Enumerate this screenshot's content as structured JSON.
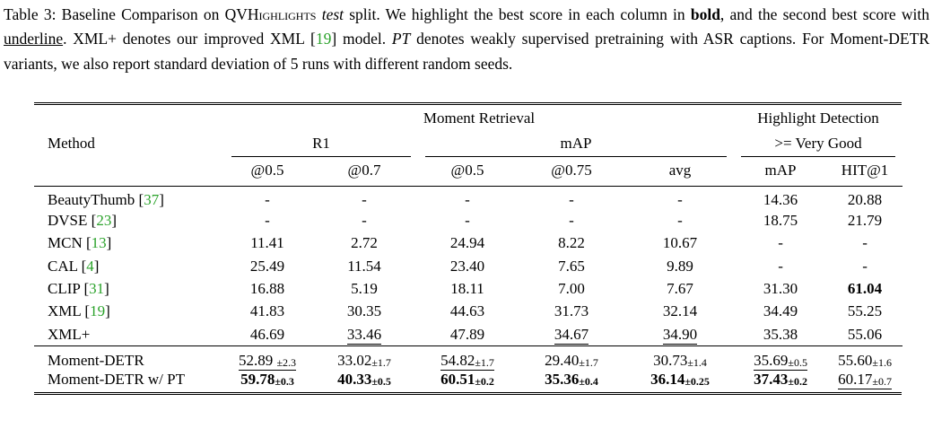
{
  "colors": {
    "citation_green": "#2aa22a",
    "text": "#000000",
    "rule": "#000000"
  },
  "caption": {
    "part1": "Table 3: Baseline Comparison on ",
    "qvhighlights": "QVHighlights",
    "space1": " ",
    "test_italic": "test",
    "part3": " split. We highlight the best score in each column in ",
    "bold_word": "bold",
    "part4": ", and the second best score with ",
    "underline_word": "underline",
    "part5": ". XML+ denotes our improved XML [",
    "cite_19": "19",
    "part6": "] model. ",
    "pt_italic": "PT",
    "part7": " denotes weakly supervised pretraining with ASR captions. For Moment-DETR variants, we also report standard deviation of 5 runs with different random seeds."
  },
  "table": {
    "header": {
      "method_label": "Method",
      "group_top": [
        "Moment Retrieval",
        "Highlight Detection"
      ],
      "group_mid": [
        "R1",
        "mAP",
        ">= Very Good"
      ],
      "columns": [
        "@0.5",
        "@0.7",
        "@0.5",
        "@0.75",
        "avg",
        "mAP",
        "HIT@1"
      ]
    },
    "rows_baselines": [
      {
        "method": "BeautyThumb",
        "cite": "37",
        "cells": [
          {
            "v": "-"
          },
          {
            "v": "-"
          },
          {
            "v": "-"
          },
          {
            "v": "-"
          },
          {
            "v": "-"
          },
          {
            "v": "14.36"
          },
          {
            "v": "20.88"
          }
        ]
      },
      {
        "method": "DVSE",
        "cite": "23",
        "cells": [
          {
            "v": "-"
          },
          {
            "v": "-"
          },
          {
            "v": "-"
          },
          {
            "v": "-"
          },
          {
            "v": "-"
          },
          {
            "v": "18.75"
          },
          {
            "v": "21.79"
          }
        ]
      },
      {
        "method": "MCN",
        "cite": "13",
        "cells": [
          {
            "v": "11.41"
          },
          {
            "v": "2.72"
          },
          {
            "v": "24.94"
          },
          {
            "v": "8.22"
          },
          {
            "v": "10.67"
          },
          {
            "v": "-"
          },
          {
            "v": "-"
          }
        ]
      },
      {
        "method": "CAL",
        "cite": "4",
        "cells": [
          {
            "v": "25.49"
          },
          {
            "v": "11.54"
          },
          {
            "v": "23.40"
          },
          {
            "v": "7.65"
          },
          {
            "v": "9.89"
          },
          {
            "v": "-"
          },
          {
            "v": "-"
          }
        ]
      },
      {
        "method": "CLIP",
        "cite": "31",
        "cells": [
          {
            "v": "16.88"
          },
          {
            "v": "5.19"
          },
          {
            "v": "18.11"
          },
          {
            "v": "7.00"
          },
          {
            "v": "7.67"
          },
          {
            "v": "31.30"
          },
          {
            "v": "61.04",
            "bold": true
          }
        ]
      },
      {
        "method": "XML",
        "cite": "19",
        "cells": [
          {
            "v": "41.83"
          },
          {
            "v": "30.35"
          },
          {
            "v": "44.63"
          },
          {
            "v": "31.73"
          },
          {
            "v": "32.14"
          },
          {
            "v": "34.49"
          },
          {
            "v": "55.25"
          }
        ]
      },
      {
        "method": "XML+",
        "cite": null,
        "cells": [
          {
            "v": "46.69"
          },
          {
            "v": "33.46",
            "ul": true
          },
          {
            "v": "47.89"
          },
          {
            "v": "34.67",
            "ul": true
          },
          {
            "v": "34.90",
            "ul": true
          },
          {
            "v": "35.38"
          },
          {
            "v": "55.06"
          }
        ]
      }
    ],
    "rows_momentdetr": [
      {
        "method": "Moment-DETR",
        "cite": null,
        "cells": [
          {
            "v": "52.89",
            "pm": "2.3",
            "ul": true,
            "sp": true
          },
          {
            "v": "33.02",
            "pm": "1.7"
          },
          {
            "v": "54.82",
            "pm": "1.7",
            "ul": true
          },
          {
            "v": "29.40",
            "pm": "1.7"
          },
          {
            "v": "30.73",
            "pm": "1.4"
          },
          {
            "v": "35.69",
            "pm": "0.5",
            "ul": true
          },
          {
            "v": "55.60",
            "pm": "1.6"
          }
        ]
      },
      {
        "method": "Moment-DETR w/ PT",
        "cite": null,
        "cells": [
          {
            "v": "59.78",
            "pm": "0.3",
            "bold": true
          },
          {
            "v": "40.33",
            "pm": "0.5",
            "bold": true
          },
          {
            "v": "60.51",
            "pm": "0.2",
            "bold": true
          },
          {
            "v": "35.36",
            "pm": "0.4",
            "bold": true
          },
          {
            "v": "36.14",
            "pm": "0.25",
            "bold": true
          },
          {
            "v": "37.43",
            "pm": "0.2",
            "bold": true
          },
          {
            "v": "60.17",
            "pm": "0.7",
            "ul": true
          }
        ]
      }
    ]
  }
}
